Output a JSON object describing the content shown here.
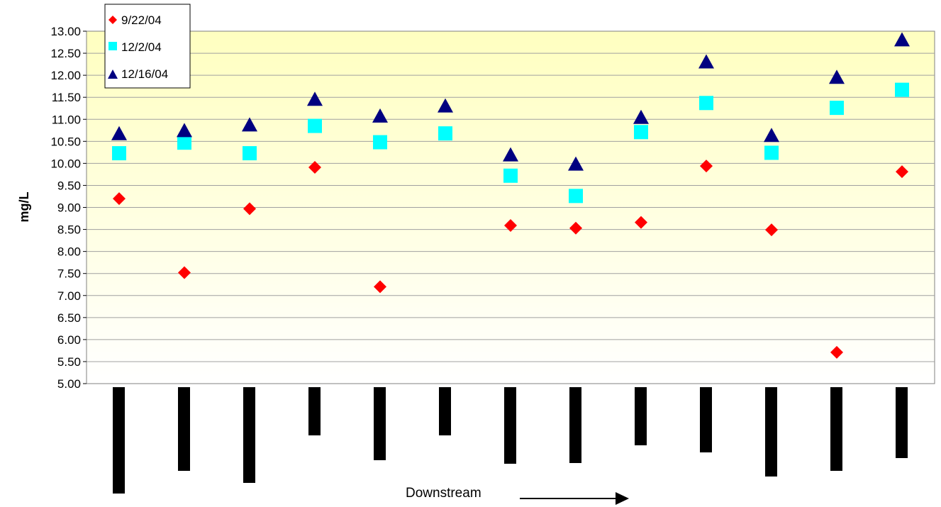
{
  "chart_data": {
    "type": "scatter",
    "title": "",
    "xlabel": "",
    "ylabel": "mg/L",
    "footer_label": "Downstream",
    "categories": [
      "",
      "",
      "",
      "",
      "",
      "",
      "",
      "",
      "",
      "",
      "",
      "",
      ""
    ],
    "ylim": [
      5.0,
      13.0
    ],
    "ytick_step": 0.5,
    "yticks": [
      "5.00",
      "5.50",
      "6.00",
      "6.50",
      "7.00",
      "7.50",
      "8.00",
      "8.50",
      "9.00",
      "9.50",
      "10.00",
      "10.50",
      "11.00",
      "11.50",
      "12.00",
      "12.50",
      "13.00"
    ],
    "grid": true,
    "legend_position": "top-left",
    "series": [
      {
        "name": "9/22/04",
        "marker": "diamond",
        "color": "#ff0000",
        "values": [
          9.2,
          7.52,
          8.97,
          9.91,
          7.2,
          null,
          8.59,
          8.53,
          8.66,
          9.94,
          8.49,
          5.71,
          9.81
        ]
      },
      {
        "name": "12/2/04",
        "marker": "square",
        "color": "#00ffff",
        "values": [
          10.23,
          10.47,
          10.23,
          10.85,
          10.48,
          10.68,
          9.72,
          9.26,
          10.71,
          11.37,
          10.24,
          11.26,
          11.67
        ]
      },
      {
        "name": "12/16/04",
        "marker": "triangle",
        "color": "#000080",
        "values": [
          10.67,
          10.74,
          10.87,
          11.45,
          11.07,
          11.3,
          10.19,
          9.98,
          11.04,
          12.3,
          10.63,
          11.95,
          12.8
        ]
      }
    ],
    "plot_background": [
      "#ffffe0",
      "#ffffc0"
    ]
  }
}
